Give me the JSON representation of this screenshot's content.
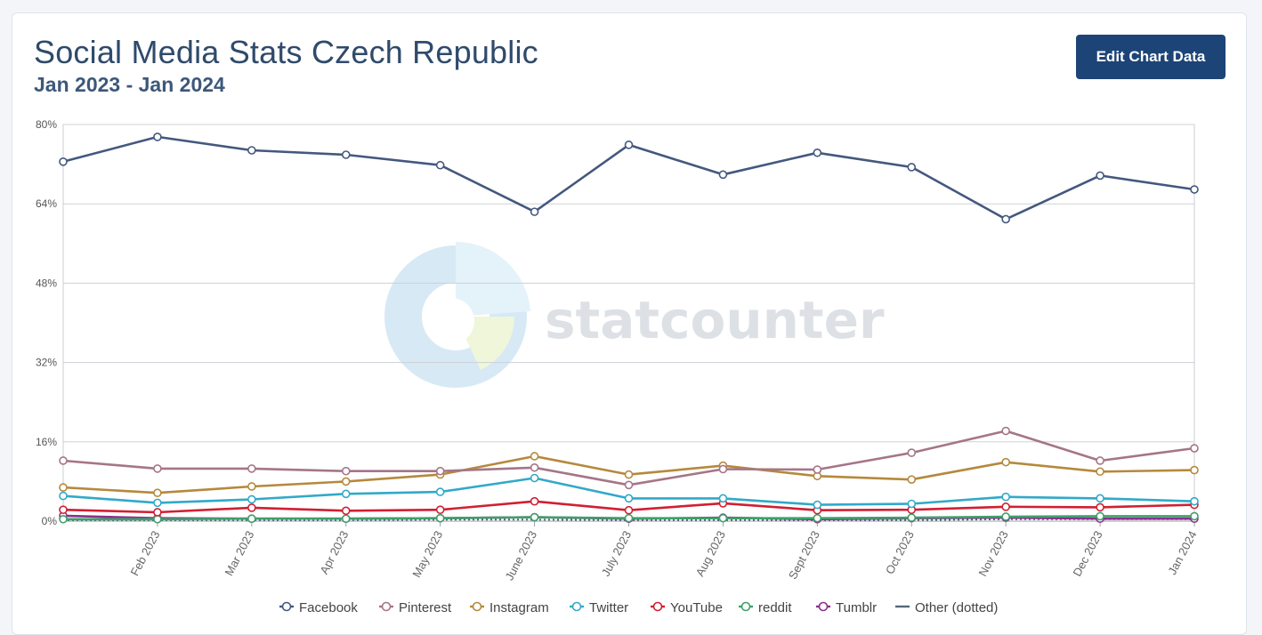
{
  "header": {
    "title": "Social Media Stats Czech Republic",
    "subtitle": "Jan 2023 - Jan 2024",
    "edit_button_label": "Edit Chart Data"
  },
  "watermark": {
    "text": "statcounter"
  },
  "chart_data": {
    "type": "line",
    "title": "Social Media Stats Czech Republic",
    "subtitle": "Jan 2023 - Jan 2024",
    "categories": [
      "Jan 2023",
      "Feb 2023",
      "Mar 2023",
      "Apr 2023",
      "May 2023",
      "June 2023",
      "July 2023",
      "Aug 2023",
      "Sept 2023",
      "Oct 2023",
      "Nov 2023",
      "Dec 2023",
      "Jan 2024"
    ],
    "x_tick_labels": [
      "Feb 2023",
      "Mar 2023",
      "Apr 2023",
      "May 2023",
      "June 2023",
      "July 2023",
      "Aug 2023",
      "Sept 2023",
      "Oct 2023",
      "Nov 2023",
      "Dec 2023",
      "Jan 2024"
    ],
    "ylim": [
      0,
      80
    ],
    "y_ticks": [
      0,
      16,
      32,
      48,
      64,
      80
    ],
    "y_tick_labels": [
      "0%",
      "16%",
      "32%",
      "48%",
      "64%",
      "80%"
    ],
    "grid": true,
    "legend_position": "bottom",
    "series": [
      {
        "name": "Facebook",
        "color": "#44587f",
        "values": [
          72.5,
          77.5,
          74.8,
          73.9,
          71.8,
          62.4,
          75.9,
          69.9,
          74.3,
          71.4,
          60.9,
          69.7,
          66.9
        ]
      },
      {
        "name": "Pinterest",
        "color": "#a57588",
        "values": [
          12.2,
          10.6,
          10.6,
          10.1,
          10.1,
          10.8,
          7.3,
          10.5,
          10.4,
          13.8,
          18.2,
          12.2,
          14.7
        ]
      },
      {
        "name": "Instagram",
        "color": "#b5893c",
        "values": [
          6.8,
          5.7,
          7.0,
          8.0,
          9.4,
          13.1,
          9.4,
          11.2,
          9.1,
          8.4,
          11.9,
          10.0,
          10.3
        ]
      },
      {
        "name": "Twitter",
        "color": "#31a9c9",
        "values": [
          5.1,
          3.7,
          4.4,
          5.5,
          5.9,
          8.7,
          4.6,
          4.6,
          3.3,
          3.5,
          4.9,
          4.6,
          4.0
        ]
      },
      {
        "name": "YouTube",
        "color": "#d11f32",
        "values": [
          2.3,
          1.8,
          2.7,
          2.1,
          2.3,
          4.0,
          2.2,
          3.6,
          2.2,
          2.3,
          2.9,
          2.8,
          3.3
        ]
      },
      {
        "name": "reddit",
        "color": "#3fa06a",
        "values": [
          0.4,
          0.4,
          0.5,
          0.5,
          0.6,
          0.8,
          0.6,
          0.6,
          0.6,
          0.7,
          0.9,
          1.0,
          1.0
        ]
      },
      {
        "name": "Tumblr",
        "color": "#8e2f8e",
        "values": [
          1.1,
          0.6,
          0.5,
          0.5,
          0.6,
          0.8,
          0.5,
          0.7,
          0.4,
          0.6,
          0.7,
          0.5,
          0.5
        ]
      },
      {
        "name": "Other (dotted)",
        "color": "#55677c",
        "values": [
          0.2,
          0.2,
          0.2,
          0.2,
          0.3,
          0.3,
          0.2,
          0.2,
          0.2,
          0.2,
          0.4,
          0.4,
          0.4
        ]
      }
    ]
  }
}
